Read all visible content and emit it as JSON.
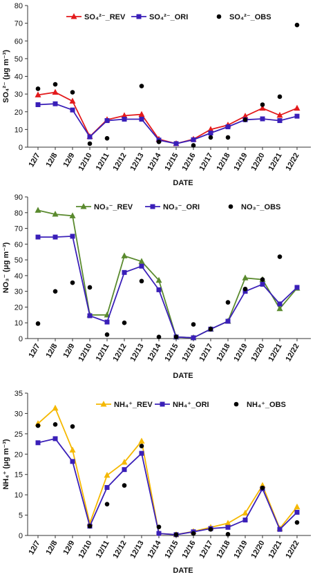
{
  "chart_data": [
    {
      "type": "line",
      "categories": [
        "12/7",
        "12/8",
        "12/9",
        "12/10",
        "12/11",
        "12/12",
        "12/13",
        "12/14",
        "12/15",
        "12/16",
        "12/17",
        "12/18",
        "12/19",
        "12/20",
        "12/21",
        "12/22"
      ],
      "xlabel": "DATE",
      "ylabel": "SO₄²⁻ (μg m⁻³)",
      "ylim": [
        0,
        80
      ],
      "yticks": [
        0,
        10,
        20,
        30,
        40,
        50,
        60,
        70,
        80
      ],
      "legend_position": "top",
      "series": [
        {
          "name": "SO₄²⁻_REV",
          "style": "line-triangle",
          "color": "#e31a1c",
          "values": [
            29.5,
            31.0,
            26.0,
            6.0,
            15.5,
            17.8,
            18.5,
            4.5,
            2.0,
            4.5,
            10.0,
            12.5,
            17.5,
            22.0,
            18.0,
            22.0
          ]
        },
        {
          "name": "SO₄²⁻_ORI",
          "style": "line-square",
          "color": "#3a1fb8",
          "values": [
            24.0,
            24.5,
            21.0,
            5.8,
            15.0,
            15.8,
            15.8,
            4.0,
            2.0,
            4.2,
            8.0,
            11.5,
            15.5,
            16.0,
            15.0,
            17.5
          ]
        },
        {
          "name": "SO₄²⁻_OBS",
          "style": "dot",
          "color": "#000000",
          "values": [
            33.0,
            35.5,
            31.0,
            2.0,
            5.0,
            null,
            34.5,
            3.0,
            null,
            1.0,
            5.5,
            5.5,
            15.5,
            24.0,
            28.5,
            69.0
          ]
        }
      ]
    },
    {
      "type": "line",
      "categories": [
        "12/7",
        "12/8",
        "12/9",
        "12/10",
        "12/11",
        "12/12",
        "12/13",
        "12/14",
        "12/15",
        "12/16",
        "12/17",
        "12/18",
        "12/19",
        "12/20",
        "12/21",
        "12/22"
      ],
      "xlabel": "DATE",
      "ylabel": "NO₃⁻ (μg m⁻³)",
      "ylim": [
        0,
        90
      ],
      "yticks": [
        0,
        10,
        20,
        30,
        40,
        50,
        60,
        70,
        80,
        90
      ],
      "legend_position": "top",
      "series": [
        {
          "name": "NO₃⁻_REV",
          "style": "line-triangle",
          "color": "#5a8a2e",
          "values": [
            81.5,
            79.0,
            78.0,
            15.0,
            15.0,
            52.5,
            49.0,
            37.0,
            1.0,
            0.5,
            6.0,
            11.0,
            38.5,
            37.5,
            19.0,
            32.0
          ]
        },
        {
          "name": "NO₃⁻_ORI",
          "style": "line-square",
          "color": "#3a1fb8",
          "values": [
            64.5,
            64.5,
            65.0,
            14.5,
            10.5,
            42.0,
            46.0,
            31.0,
            1.0,
            0.5,
            6.0,
            11.0,
            30.0,
            34.5,
            22.0,
            32.5
          ]
        },
        {
          "name": "NO₃⁻_OBS",
          "style": "dot",
          "color": "#000000",
          "values": [
            9.5,
            30.0,
            35.5,
            32.5,
            2.5,
            10.0,
            36.5,
            1.0,
            1.0,
            9.0,
            6.0,
            23.0,
            31.5,
            37.5,
            52.0,
            null
          ]
        }
      ]
    },
    {
      "type": "line",
      "categories": [
        "12/7",
        "12/8",
        "12/9",
        "12/10",
        "12/11",
        "12/12",
        "12/13",
        "12/14",
        "12/15",
        "12/16",
        "12/17",
        "12/18",
        "12/19",
        "12/20",
        "12/21",
        "12/22"
      ],
      "xlabel": "DATE",
      "ylabel": "NH₄⁺ (μg m⁻³)",
      "ylim": [
        0,
        35
      ],
      "yticks": [
        0,
        5,
        10,
        15,
        20,
        25,
        30,
        35
      ],
      "legend_position": "top",
      "series": [
        {
          "name": "NH₄⁺_REV",
          "style": "line-triangle",
          "color": "#f5b800",
          "values": [
            27.5,
            31.3,
            21.0,
            3.0,
            14.8,
            18.0,
            23.2,
            0.5,
            0.2,
            1.0,
            2.0,
            3.0,
            5.5,
            12.3,
            1.7,
            7.0
          ]
        },
        {
          "name": "NH₄⁺_ORI",
          "style": "line-square",
          "color": "#3a1fb8",
          "values": [
            22.8,
            23.8,
            18.2,
            2.3,
            11.8,
            16.2,
            20.2,
            0.5,
            0.2,
            0.9,
            1.7,
            2.0,
            3.8,
            11.5,
            1.5,
            5.7
          ]
        },
        {
          "name": "NH₄⁺_OBS",
          "style": "dot",
          "color": "#000000",
          "values": [
            27.0,
            27.3,
            26.8,
            2.3,
            7.7,
            12.3,
            22.0,
            2.1,
            0.2,
            0.5,
            1.5,
            0.3,
            null,
            11.7,
            null,
            3.2
          ]
        }
      ]
    }
  ]
}
